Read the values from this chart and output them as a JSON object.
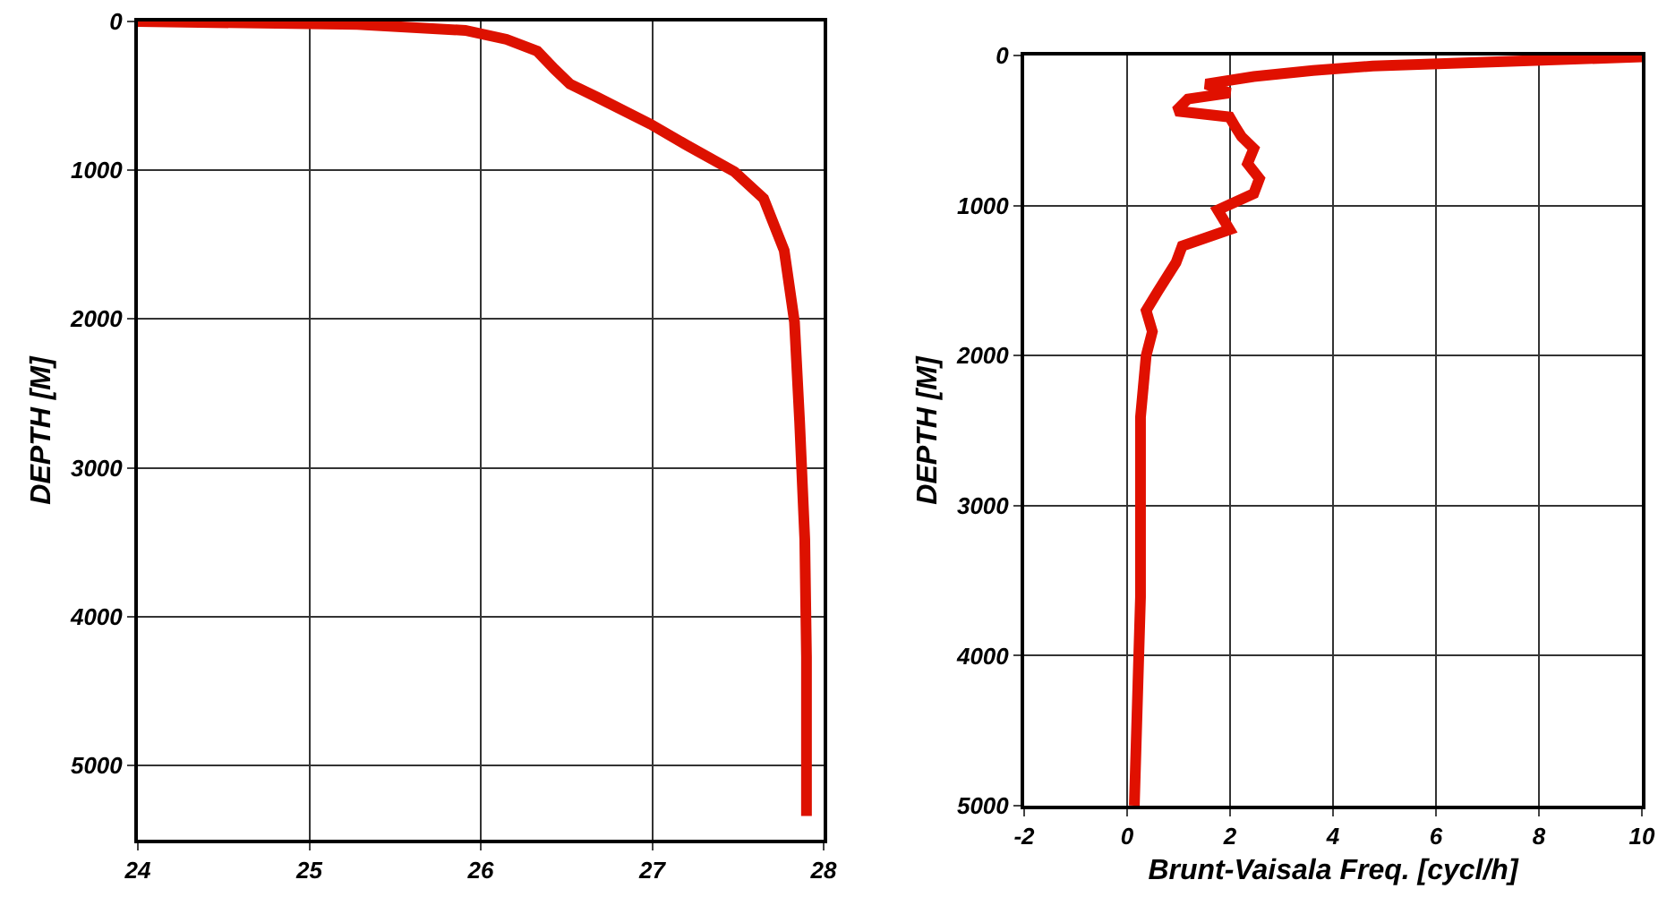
{
  "chart_data": [
    {
      "type": "line",
      "ylabel": "DEPTH [M]",
      "xlim": [
        24,
        28
      ],
      "xticks": [
        24,
        25,
        26,
        27,
        28
      ],
      "ylim": [
        5500,
        0
      ],
      "yticks": [
        0,
        1000,
        2000,
        3000,
        4000,
        5000
      ],
      "grid": true,
      "marker": "none",
      "line_style": "solid",
      "series": [
        {
          "color": "#dd1100",
          "x": [
            24,
            25.28,
            25.91,
            26.15,
            26.33,
            26.43,
            26.52,
            26.68,
            26.99,
            27.2,
            27.48,
            27.65,
            27.77,
            27.83,
            27.86,
            27.89,
            27.9,
            27.9
          ],
          "values": [
            0,
            20,
            60,
            120,
            200,
            320,
            420,
            510,
            690,
            830,
            1010,
            1190,
            1540,
            2020,
            2690,
            3480,
            4270,
            5340
          ]
        }
      ]
    },
    {
      "type": "line",
      "xlabel": "Brunt-Vaisala Freq. [cycl/h]",
      "ylabel": "DEPTH [M]",
      "xlim": [
        -2,
        10
      ],
      "xticks": [
        -2,
        0,
        2,
        4,
        6,
        8,
        10
      ],
      "ylim": [
        5000,
        0
      ],
      "yticks": [
        0,
        1000,
        2000,
        3000,
        4000,
        5000
      ],
      "grid": true,
      "marker": "none",
      "line_style": "solid",
      "series": [
        {
          "color": "#e01000",
          "x": [
            9.9,
            9.9,
            7.32,
            4.77,
            3.61,
            2.46,
            1.53,
            1.99,
            1.18,
            0.95,
            1.99,
            2.11,
            2.22,
            2.46,
            2.34,
            2.57,
            2.46,
            1.76,
            1.99,
            1.07,
            0.95,
            0.6,
            0.37,
            0.49,
            0.37,
            0.26,
            0.26,
            0.26,
            0.14
          ],
          "values": [
            0,
            10,
            40,
            70,
            100,
            140,
            190,
            250,
            290,
            370,
            410,
            480,
            540,
            620,
            720,
            820,
            920,
            1030,
            1160,
            1270,
            1380,
            1570,
            1700,
            1840,
            2000,
            2410,
            2860,
            3610,
            5000
          ]
        }
      ]
    }
  ]
}
